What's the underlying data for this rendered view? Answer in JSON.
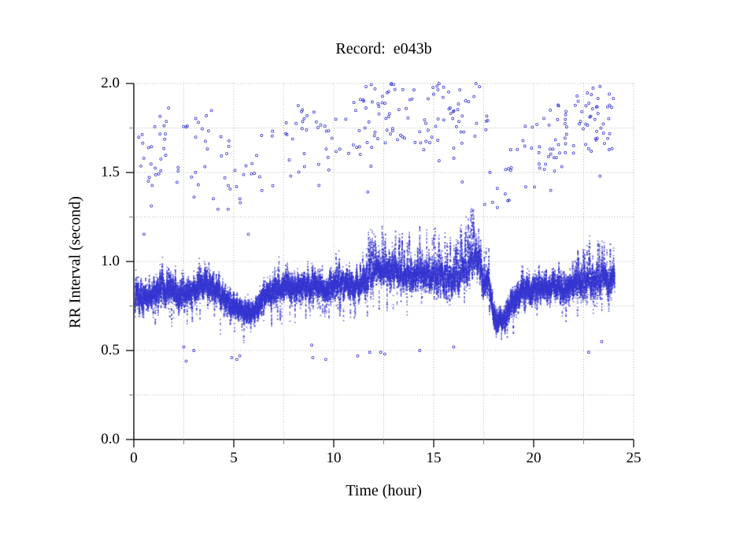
{
  "window": {
    "background": "#ffffff"
  },
  "chart_data": {
    "type": "scatter",
    "title": "Record:  e043b",
    "xlabel": "Time (hour)",
    "ylabel": "RR Interval (second)",
    "xlim": [
      0,
      25
    ],
    "ylim": [
      0.0,
      2.0
    ],
    "x_major_ticks": [
      {
        "v": 0,
        "label": "0"
      },
      {
        "v": 5,
        "label": "5"
      },
      {
        "v": 10,
        "label": "10"
      },
      {
        "v": 15,
        "label": "15"
      },
      {
        "v": 20,
        "label": "20"
      },
      {
        "v": 25,
        "label": "25"
      }
    ],
    "x_minor_interval": 2.5,
    "y_major_ticks": [
      {
        "v": 0.0,
        "label": "0.0"
      },
      {
        "v": 0.5,
        "label": "0.5"
      },
      {
        "v": 1.0,
        "label": "1.0"
      },
      {
        "v": 1.5,
        "label": "1.5"
      },
      {
        "v": 2.0,
        "label": "2.0"
      }
    ],
    "y_minor_interval": 0.25,
    "grid": {
      "style": "dotted",
      "color": "#b5b5b5",
      "x_interval": 2.5,
      "y_interval": 0.25
    },
    "axis_color": "#111111",
    "minor_tick_color": "#888888",
    "marker": {
      "shape": "point",
      "color": "#3636d0",
      "outlier_shape": "open-circle"
    },
    "series": [
      {
        "name": "rr-baseline-band",
        "description": "Dense 24-hour RR-interval tachogram band, ~0.6-1.05 s, with transient elevations near hours 12-17 and dips near hours 5-6 and 18",
        "n_points": 36000,
        "time_range_hours": [
          0.06,
          24.05
        ],
        "profile_t_mean_halfwidth_spike": [
          [
            0.0,
            0.84,
            0.1,
            0.12
          ],
          [
            0.4,
            0.78,
            0.08,
            0.05
          ],
          [
            0.8,
            0.8,
            0.08,
            0.08
          ],
          [
            1.3,
            0.84,
            0.09,
            0.1
          ],
          [
            1.8,
            0.86,
            0.09,
            0.1
          ],
          [
            2.3,
            0.82,
            0.09,
            0.08
          ],
          [
            2.8,
            0.82,
            0.08,
            0.08
          ],
          [
            3.3,
            0.86,
            0.09,
            0.1
          ],
          [
            3.8,
            0.87,
            0.09,
            0.1
          ],
          [
            4.3,
            0.82,
            0.08,
            0.06
          ],
          [
            4.8,
            0.76,
            0.07,
            0.05
          ],
          [
            5.3,
            0.73,
            0.07,
            0.04
          ],
          [
            5.8,
            0.71,
            0.07,
            0.04
          ],
          [
            6.2,
            0.74,
            0.08,
            0.08
          ],
          [
            6.6,
            0.82,
            0.09,
            0.08
          ],
          [
            7.2,
            0.85,
            0.09,
            0.08
          ],
          [
            7.8,
            0.86,
            0.09,
            0.1
          ],
          [
            8.4,
            0.85,
            0.09,
            0.12
          ],
          [
            9.0,
            0.86,
            0.09,
            0.1
          ],
          [
            9.6,
            0.85,
            0.09,
            0.08
          ],
          [
            10.2,
            0.87,
            0.09,
            0.1
          ],
          [
            10.8,
            0.87,
            0.08,
            0.08
          ],
          [
            11.4,
            0.88,
            0.09,
            0.12
          ],
          [
            11.8,
            0.92,
            0.1,
            0.22
          ],
          [
            12.4,
            0.95,
            0.1,
            0.25
          ],
          [
            13.0,
            0.94,
            0.1,
            0.2
          ],
          [
            13.6,
            0.91,
            0.1,
            0.2
          ],
          [
            14.2,
            0.92,
            0.1,
            0.2
          ],
          [
            14.8,
            0.91,
            0.1,
            0.22
          ],
          [
            15.4,
            0.92,
            0.1,
            0.2
          ],
          [
            16.0,
            0.9,
            0.1,
            0.15
          ],
          [
            16.6,
            0.94,
            0.1,
            0.25
          ],
          [
            17.0,
            1.02,
            0.1,
            0.27
          ],
          [
            17.3,
            1.0,
            0.1,
            0.2
          ],
          [
            17.5,
            0.85,
            0.09,
            0.08
          ],
          [
            17.75,
            0.9,
            0.09,
            0.15
          ],
          [
            18.0,
            0.68,
            0.07,
            0.04
          ],
          [
            18.4,
            0.66,
            0.06,
            0.04
          ],
          [
            18.8,
            0.74,
            0.08,
            0.05
          ],
          [
            19.3,
            0.82,
            0.08,
            0.06
          ],
          [
            19.8,
            0.84,
            0.08,
            0.08
          ],
          [
            20.4,
            0.84,
            0.08,
            0.08
          ],
          [
            21.0,
            0.86,
            0.09,
            0.08
          ],
          [
            21.6,
            0.85,
            0.09,
            0.08
          ],
          [
            22.2,
            0.88,
            0.09,
            0.15
          ],
          [
            22.8,
            0.9,
            0.09,
            0.18
          ],
          [
            23.4,
            0.91,
            0.09,
            0.18
          ],
          [
            24.0,
            0.88,
            0.09,
            0.12
          ]
        ]
      },
      {
        "name": "long-rr-outliers",
        "description": "Sparse long intervals (ectopy / missed beats) at roughly 1.75-2.2x the local baseline mean, clipped at 2.0 s; denser near hours 11-16.5 and 21-24",
        "uniform_count": 220,
        "clusters": [
          {
            "range": [
              11.2,
              16.5
            ],
            "count": 45
          },
          {
            "range": [
              20.8,
              24.05
            ],
            "count": 35
          }
        ],
        "multiplier_range": [
          1.75,
          2.2
        ],
        "value_range": [
          1.3,
          2.0
        ]
      },
      {
        "name": "mid-rr-outliers",
        "description": "Occasional isolated intervals between the band and the long-interval cloud (~1.1-1.45 s)",
        "count": 22,
        "multiplier_range": [
          1.45,
          1.75
        ]
      },
      {
        "name": "short-rr-outliers",
        "description": "Rare short intervals (~0.44-0.55 s)",
        "points": [
          [
            2.5,
            0.52
          ],
          [
            2.62,
            0.44
          ],
          [
            3.0,
            0.5
          ],
          [
            4.9,
            0.46
          ],
          [
            5.15,
            0.45
          ],
          [
            5.3,
            0.47
          ],
          [
            8.9,
            0.53
          ],
          [
            8.95,
            0.46
          ],
          [
            9.6,
            0.45
          ],
          [
            11.2,
            0.47
          ],
          [
            11.8,
            0.49
          ],
          [
            12.35,
            0.49
          ],
          [
            12.55,
            0.48
          ],
          [
            14.3,
            0.5
          ],
          [
            16.0,
            0.52
          ],
          [
            22.75,
            0.49
          ],
          [
            23.4,
            0.55
          ]
        ]
      }
    ]
  }
}
